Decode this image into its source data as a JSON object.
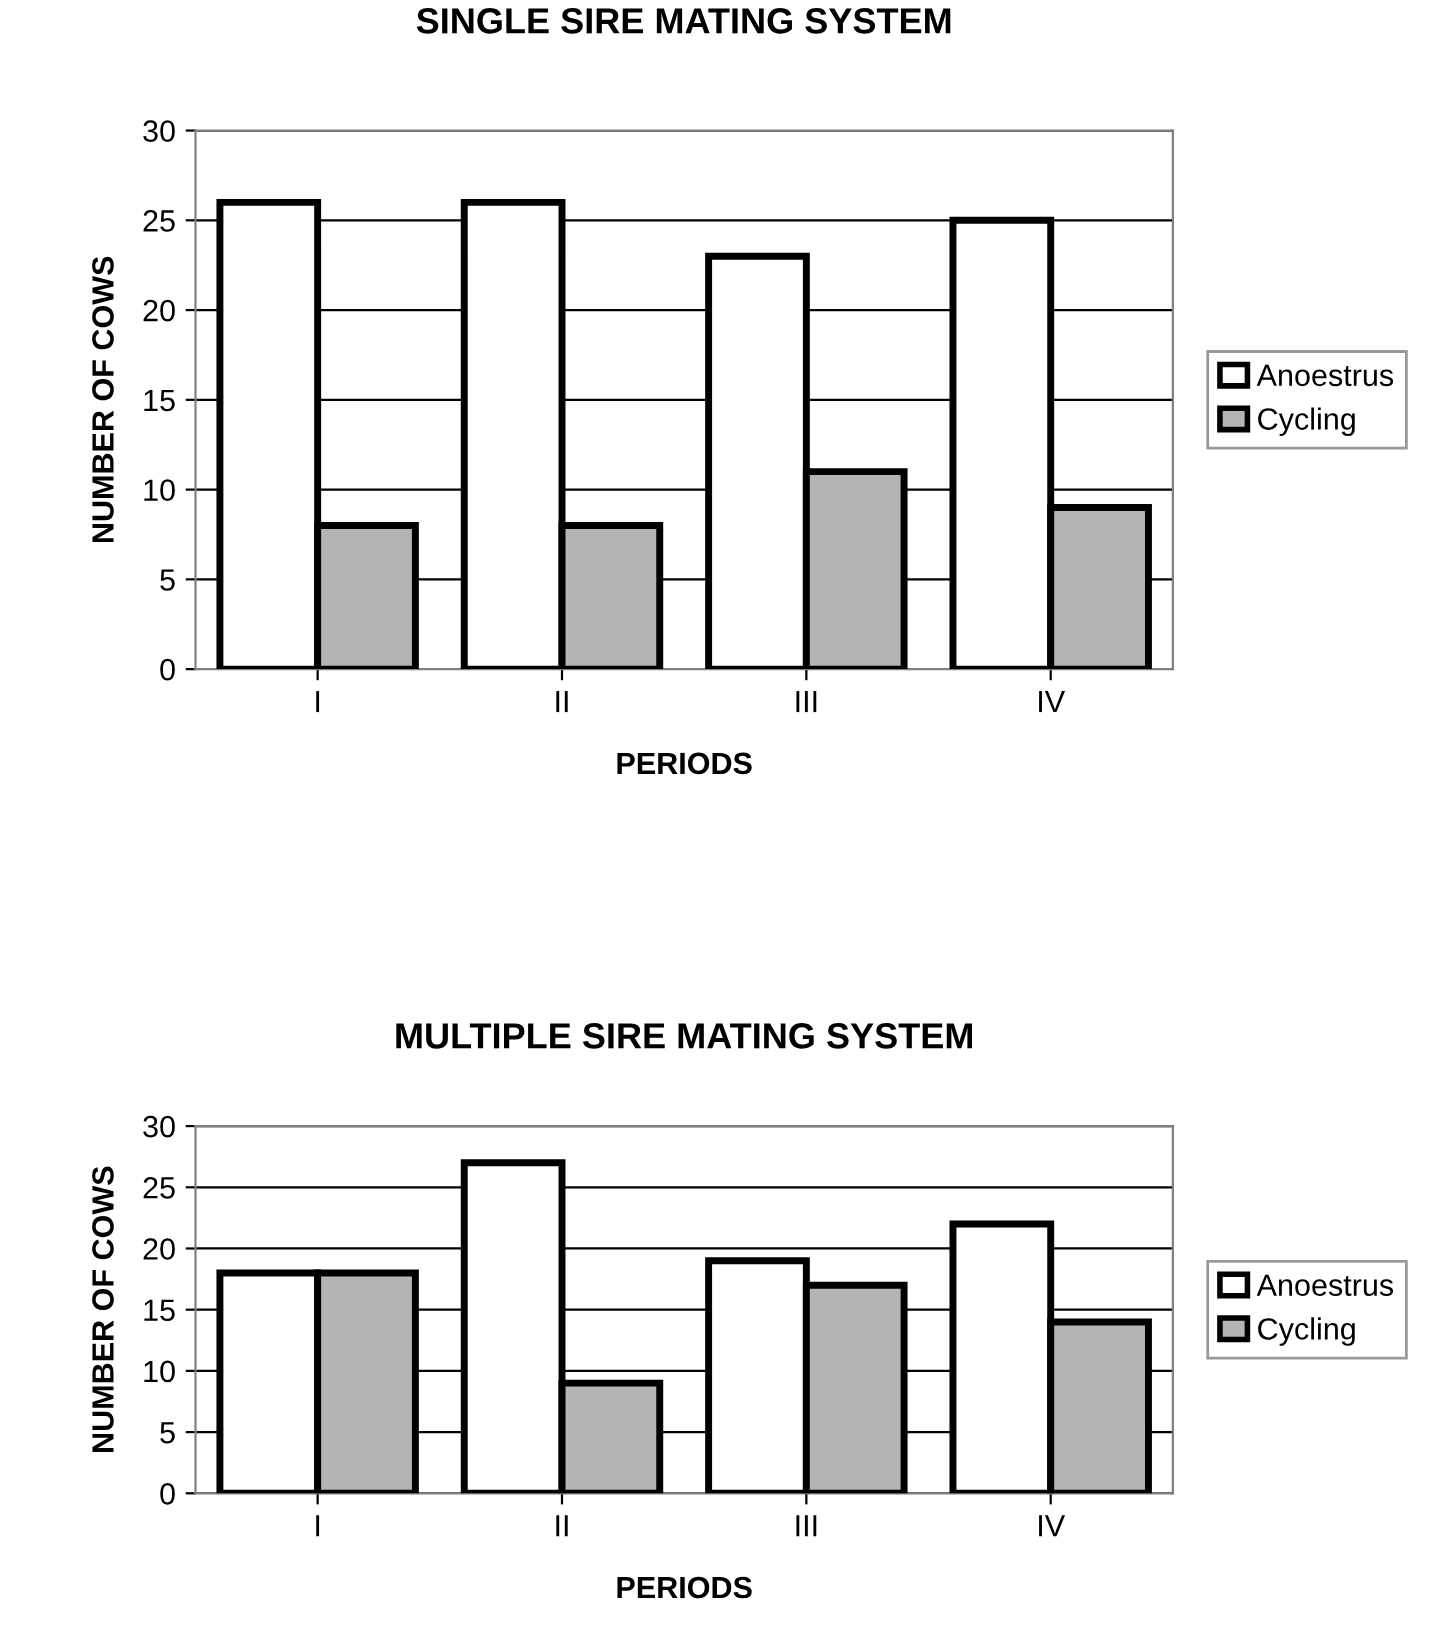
{
  "chart_data": [
    {
      "type": "bar",
      "title": "SINGLE SIRE MATING SYSTEM",
      "xlabel": "PERIODS",
      "ylabel": "NUMBER OF COWS",
      "categories": [
        "I",
        "II",
        "III",
        "IV"
      ],
      "series": [
        {
          "name": "Anoestrus",
          "color": "#ffffff",
          "values": [
            26,
            26,
            23,
            25
          ]
        },
        {
          "name": "Cycling",
          "color": "#b4b4b4",
          "values": [
            8,
            8,
            11,
            9
          ]
        }
      ],
      "ylim": [
        0,
        30
      ],
      "yticks": [
        0,
        5,
        10,
        15,
        20,
        25,
        30
      ],
      "grid": "y",
      "legend": "right"
    },
    {
      "type": "bar",
      "title": "MULTIPLE SIRE MATING SYSTEM",
      "xlabel": "PERIODS",
      "ylabel": "NUMBER OF COWS",
      "categories": [
        "I",
        "II",
        "III",
        "IV"
      ],
      "series": [
        {
          "name": "Anoestrus",
          "color": "#ffffff",
          "values": [
            18,
            27,
            19,
            22
          ]
        },
        {
          "name": "Cycling",
          "color": "#b4b4b4",
          "values": [
            18,
            9,
            17,
            14
          ]
        }
      ],
      "ylim": [
        0,
        30
      ],
      "yticks": [
        0,
        5,
        10,
        15,
        20,
        25,
        30
      ],
      "grid": "y",
      "legend": "right"
    }
  ]
}
